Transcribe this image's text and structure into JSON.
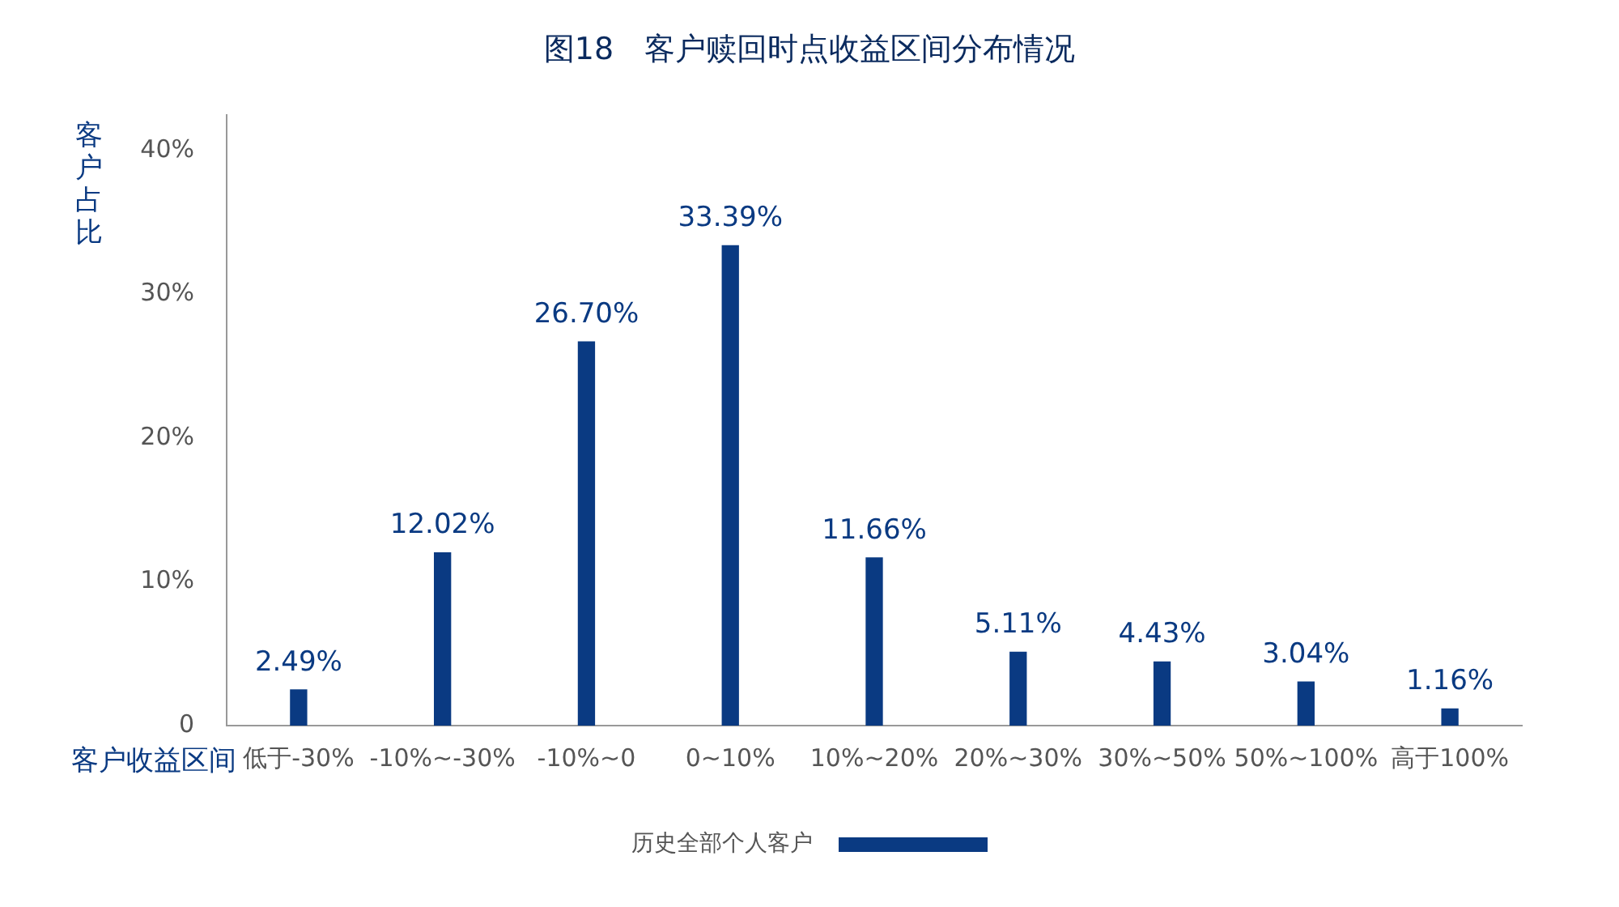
{
  "chart_data": {
    "type": "bar",
    "title": "图18　客户赎回时点收益区间分布情况",
    "xlabel": "客户收益区间",
    "ylabel": "客户占比",
    "categories": [
      "低于-30%",
      "-10%~-30%",
      "-10%~0",
      "0~10%",
      "10%~20%",
      "20%~30%",
      "30%~50%",
      "50%~100%",
      "高于100%"
    ],
    "series": [
      {
        "name": "历史全部个人客户",
        "color": "#0a3a82",
        "values": [
          2.49,
          12.02,
          26.7,
          33.39,
          11.66,
          5.11,
          4.43,
          3.04,
          1.16
        ],
        "value_labels": [
          "2.49%",
          "12.02%",
          "26.70%",
          "33.39%",
          "11.66%",
          "5.11%",
          "4.43%",
          "3.04%",
          "1.16%"
        ]
      }
    ],
    "ylim": [
      0,
      42.5
    ],
    "yticks": [
      0,
      {
        "value": 10,
        "label": "10%"
      },
      {
        "value": 20,
        "label": "20%"
      },
      {
        "value": 30,
        "label": "30%"
      },
      {
        "value": 40,
        "label": "40%"
      }
    ],
    "grid": false,
    "legend": "bottom"
  }
}
